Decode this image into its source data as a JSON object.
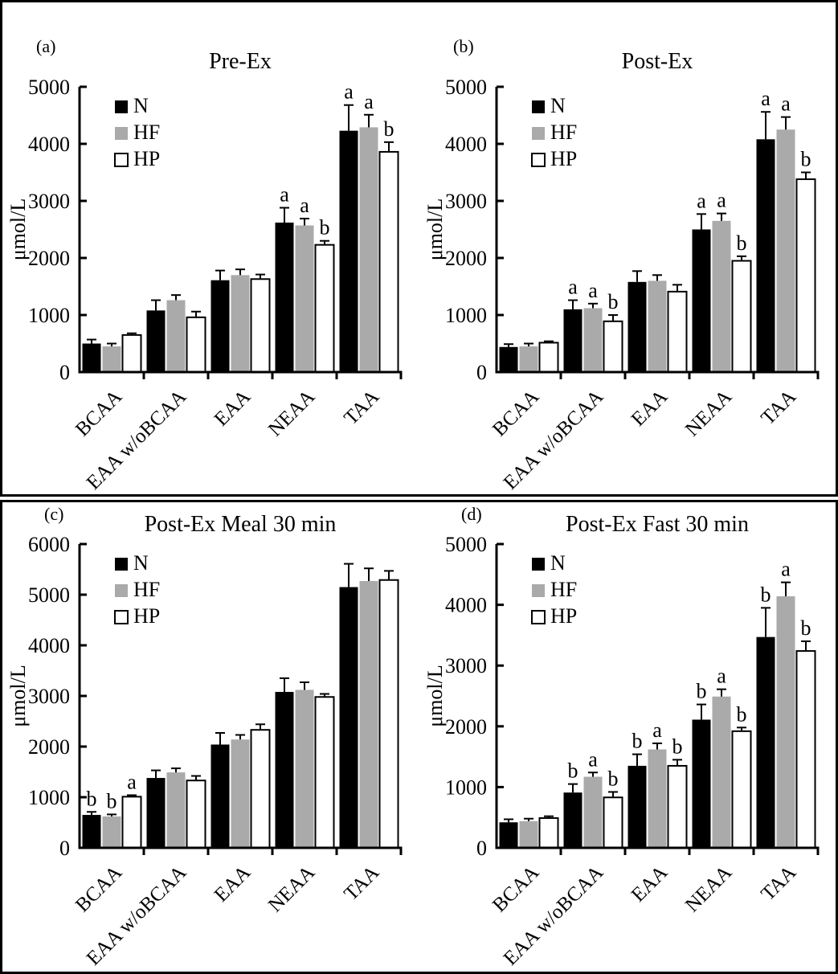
{
  "figure": {
    "unit_label": "μmol/L",
    "legend_labels": [
      "N",
      "HF",
      "HP"
    ],
    "colors": {
      "n_bar": "#000000",
      "hf_bar": "#aaaaaa",
      "hp_bar": "#ffffff",
      "axis": "#000000"
    }
  },
  "chart_data": [
    {
      "id": "a",
      "panel_label": "(a)",
      "type": "bar",
      "title": "Pre-Ex",
      "xlabel": "",
      "ylabel": "μmol/L",
      "ylim": [
        0,
        5000
      ],
      "ytick_step": 1000,
      "grid": false,
      "legend_position": "top-left-inside",
      "categories": [
        "BCAA",
        "EAA w/oBCAA",
        "EAA",
        "NEAA",
        "TAA"
      ],
      "series": [
        {
          "name": "N",
          "color": "#000000",
          "values": [
            500,
            1080,
            1610,
            2620,
            4230
          ],
          "errors": [
            70,
            180,
            170,
            260,
            450
          ],
          "letters": [
            "",
            "",
            "",
            "a",
            "a"
          ]
        },
        {
          "name": "HF",
          "color": "#aaaaaa",
          "values": [
            450,
            1260,
            1700,
            2570,
            4290
          ],
          "errors": [
            50,
            90,
            100,
            120,
            220
          ],
          "letters": [
            "",
            "",
            "",
            "a",
            "a"
          ]
        },
        {
          "name": "HP",
          "color": "#ffffff",
          "values": [
            650,
            960,
            1630,
            2230,
            3860
          ],
          "errors": [
            30,
            100,
            80,
            70,
            170
          ],
          "letters": [
            "",
            "",
            "",
            "b",
            "b"
          ]
        }
      ]
    },
    {
      "id": "b",
      "panel_label": "(b)",
      "type": "bar",
      "title": "Post-Ex",
      "xlabel": "",
      "ylabel": "μmol/L",
      "ylim": [
        0,
        5000
      ],
      "ytick_step": 1000,
      "grid": false,
      "legend_position": "top-left-inside",
      "categories": [
        "BCAA",
        "EAA w/oBCAA",
        "EAA",
        "NEAA",
        "TAA"
      ],
      "series": [
        {
          "name": "N",
          "color": "#000000",
          "values": [
            440,
            1100,
            1580,
            2500,
            4080
          ],
          "errors": [
            50,
            160,
            190,
            270,
            480
          ],
          "letters": [
            "",
            "a",
            "",
            "a",
            "a"
          ]
        },
        {
          "name": "HF",
          "color": "#aaaaaa",
          "values": [
            450,
            1120,
            1600,
            2650,
            4250
          ],
          "errors": [
            50,
            80,
            100,
            130,
            220
          ],
          "letters": [
            "",
            "a",
            "",
            "a",
            "a"
          ]
        },
        {
          "name": "HP",
          "color": "#ffffff",
          "values": [
            515,
            890,
            1410,
            1950,
            3380
          ],
          "errors": [
            25,
            110,
            120,
            80,
            120
          ],
          "letters": [
            "",
            "b",
            "",
            "b",
            "b"
          ]
        }
      ]
    },
    {
      "id": "c",
      "panel_label": "(c)",
      "type": "bar",
      "title": "Post-Ex Meal 30 min",
      "xlabel": "",
      "ylabel": "μmol/L",
      "ylim": [
        0,
        6000
      ],
      "ytick_step": 1000,
      "grid": false,
      "legend_position": "top-left-inside",
      "categories": [
        "BCAA",
        "EAA w/oBCAA",
        "EAA",
        "NEAA",
        "TAA"
      ],
      "series": [
        {
          "name": "N",
          "color": "#000000",
          "values": [
            650,
            1380,
            2040,
            3080,
            5150
          ],
          "errors": [
            60,
            150,
            230,
            270,
            460
          ],
          "letters": [
            "b",
            "",
            "",
            "",
            ""
          ]
        },
        {
          "name": "HF",
          "color": "#aaaaaa",
          "values": [
            620,
            1490,
            2140,
            3120,
            5270
          ],
          "errors": [
            40,
            80,
            90,
            150,
            250
          ],
          "letters": [
            "b",
            "",
            "",
            "",
            ""
          ]
        },
        {
          "name": "HP",
          "color": "#ffffff",
          "values": [
            1010,
            1330,
            2330,
            2980,
            5290
          ],
          "errors": [
            30,
            90,
            110,
            60,
            180
          ],
          "letters": [
            "a",
            "",
            "",
            "",
            ""
          ]
        }
      ]
    },
    {
      "id": "d",
      "panel_label": "(d)",
      "type": "bar",
      "title": "Post-Ex Fast 30 min",
      "xlabel": "",
      "ylabel": "μmol/L",
      "ylim": [
        0,
        5000
      ],
      "ytick_step": 1000,
      "grid": false,
      "legend_position": "top-left-inside",
      "categories": [
        "BCAA",
        "EAA w/oBCAA",
        "EAA",
        "NEAA",
        "TAA"
      ],
      "series": [
        {
          "name": "N",
          "color": "#000000",
          "values": [
            420,
            910,
            1350,
            2110,
            3470
          ],
          "errors": [
            50,
            140,
            190,
            250,
            480
          ],
          "letters": [
            "",
            "b",
            "b",
            "b",
            "b"
          ]
        },
        {
          "name": "HF",
          "color": "#aaaaaa",
          "values": [
            440,
            1170,
            1620,
            2490,
            4140
          ],
          "errors": [
            40,
            70,
            100,
            120,
            230
          ],
          "letters": [
            "",
            "a",
            "a",
            "a",
            "a"
          ]
        },
        {
          "name": "HP",
          "color": "#ffffff",
          "values": [
            490,
            830,
            1350,
            1920,
            3240
          ],
          "errors": [
            30,
            90,
            100,
            60,
            160
          ],
          "letters": [
            "",
            "b",
            "b",
            "b",
            "b"
          ]
        }
      ]
    }
  ]
}
